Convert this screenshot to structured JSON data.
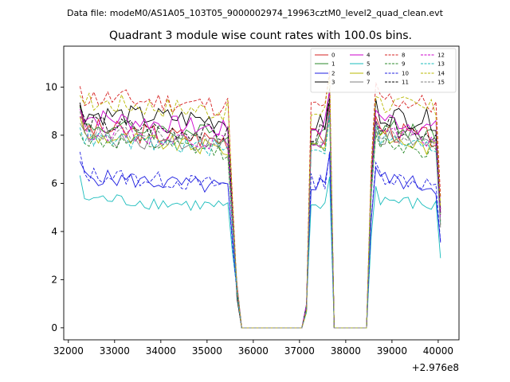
{
  "figure": {
    "file_label": "Data file: modeM0/AS1A05_103T05_9000002974_19963cztM0_level2_quad_clean.evt"
  },
  "chart_data": {
    "type": "line",
    "title": "Quadrant 3 module wise count rates with 100.0s bins.",
    "xlabel": "",
    "ylabel": "",
    "x_offset_label": "+2.976e8",
    "xlim": [
      31900,
      40450
    ],
    "ylim": [
      -0.5,
      11.7
    ],
    "xticks": [
      32000,
      33000,
      34000,
      35000,
      36000,
      37000,
      38000,
      39000,
      40000
    ],
    "yticks": [
      0,
      2,
      4,
      6,
      8,
      10
    ],
    "grid": false,
    "legend_position": "top-right",
    "legend_columns": 4,
    "segments": [
      {
        "start": 32250,
        "end": 35550
      },
      {
        "start": 37150,
        "end": 37650
      },
      {
        "start": 38550,
        "end": 40050
      }
    ],
    "series": [
      {
        "name": "0",
        "color": "#d62020",
        "dash": "solid",
        "level": 8.3,
        "amp": 0.45,
        "drift": -0.5
      },
      {
        "name": "1",
        "color": "#2a8a2a",
        "dash": "solid",
        "level": 8.4,
        "amp": 0.4,
        "drift": -0.4
      },
      {
        "name": "2",
        "color": "#1f1fe0",
        "dash": "solid",
        "level": 6.3,
        "amp": 0.35,
        "drift": -0.5
      },
      {
        "name": "3",
        "color": "#000000",
        "dash": "solid",
        "level": 8.9,
        "amp": 0.45,
        "drift": -0.3
      },
      {
        "name": "4",
        "color": "#cc00cc",
        "dash": "solid",
        "level": 8.8,
        "amp": 0.4,
        "drift": -0.6
      },
      {
        "name": "5",
        "color": "#19bcbc",
        "dash": "solid",
        "level": 5.4,
        "amp": 0.3,
        "drift": -0.4
      },
      {
        "name": "6",
        "color": "#b8b800",
        "dash": "solid",
        "level": 8.0,
        "amp": 0.35,
        "drift": -0.6
      },
      {
        "name": "7",
        "color": "#808080",
        "dash": "solid",
        "level": 7.9,
        "amp": 0.35,
        "drift": -0.3
      },
      {
        "name": "8",
        "color": "#d62020",
        "dash": "dashed",
        "level": 9.6,
        "amp": 0.45,
        "drift": -0.4
      },
      {
        "name": "9",
        "color": "#2a8a2a",
        "dash": "dashed",
        "level": 7.8,
        "amp": 0.35,
        "drift": -0.5
      },
      {
        "name": "10",
        "color": "#1f1fe0",
        "dash": "dashed",
        "level": 6.4,
        "amp": 0.35,
        "drift": -0.5
      },
      {
        "name": "11",
        "color": "#000000",
        "dash": "dashed",
        "level": 8.5,
        "amp": 0.4,
        "drift": -0.5
      },
      {
        "name": "12",
        "color": "#cc00cc",
        "dash": "dashed",
        "level": 8.2,
        "amp": 0.35,
        "drift": -0.5
      },
      {
        "name": "13",
        "color": "#19bcbc",
        "dash": "dashed",
        "level": 7.9,
        "amp": 0.35,
        "drift": -0.5
      },
      {
        "name": "14",
        "color": "#b8b800",
        "dash": "dashed",
        "level": 9.4,
        "amp": 0.45,
        "drift": -0.4
      },
      {
        "name": "15",
        "color": "#808080",
        "dash": "dashed",
        "level": 8.1,
        "amp": 0.35,
        "drift": -0.4
      }
    ]
  }
}
